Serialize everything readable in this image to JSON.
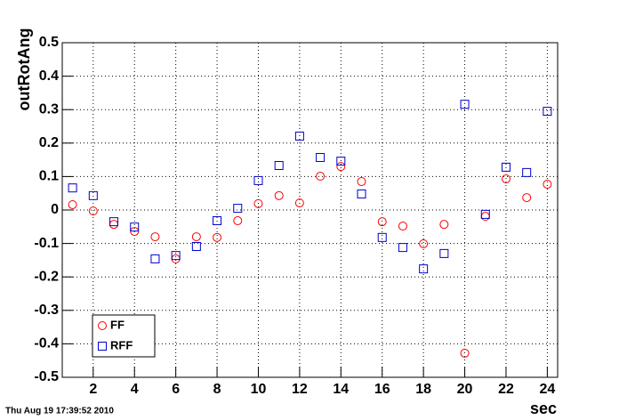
{
  "chart_data": {
    "type": "scatter",
    "x_label": "sec",
    "y_label": "outRotAng",
    "timestamp": "Thu Aug 19 17:39:52 2010",
    "x": [
      1,
      2,
      3,
      4,
      5,
      6,
      7,
      8,
      9,
      10,
      11,
      12,
      13,
      14,
      15,
      16,
      17,
      18,
      19,
      20,
      21,
      22,
      23,
      24
    ],
    "series": [
      {
        "name": "FF",
        "color": "#ff0000",
        "marker": "circle",
        "values": [
          0.016,
          -0.003,
          -0.043,
          -0.064,
          -0.08,
          -0.146,
          -0.08,
          -0.082,
          -0.032,
          0.019,
          0.043,
          0.021,
          0.101,
          0.13,
          0.085,
          -0.035,
          -0.048,
          -0.101,
          -0.043,
          -0.428,
          -0.019,
          0.093,
          0.037,
          0.077
        ]
      },
      {
        "name": "RFF",
        "color": "#0000cc",
        "marker": "square",
        "values": [
          0.066,
          0.043,
          -0.035,
          -0.051,
          -0.146,
          -0.136,
          -0.109,
          -0.032,
          0.005,
          0.088,
          0.133,
          0.221,
          0.157,
          0.146,
          0.048,
          -0.082,
          -0.112,
          -0.176,
          -0.13,
          0.316,
          -0.013,
          0.128,
          0.112,
          0.295
        ]
      }
    ],
    "xlim": [
      0.5,
      24.5
    ],
    "ylim": [
      -0.5,
      0.5
    ],
    "xticks": [
      2,
      4,
      6,
      8,
      10,
      12,
      14,
      16,
      18,
      20,
      22,
      24
    ],
    "yticks": [
      -0.5,
      -0.4,
      -0.3,
      -0.2,
      -0.1,
      0,
      0.1,
      0.2,
      0.3,
      0.4,
      0.5
    ],
    "grid": true,
    "legend": "lower left"
  }
}
